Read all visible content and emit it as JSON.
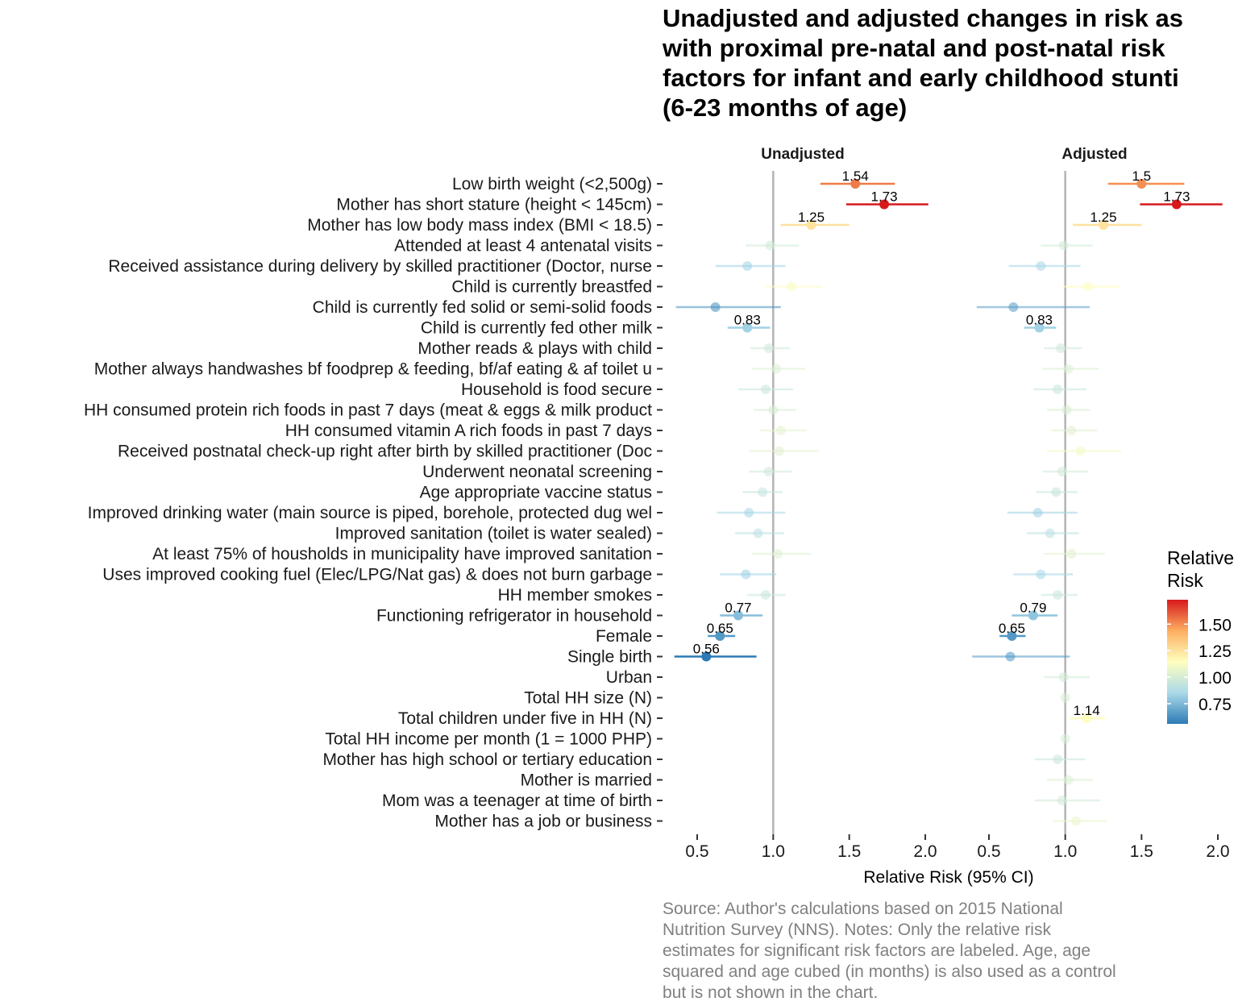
{
  "title_lines": [
    "Unadjusted and adjusted changes in risk as",
    "with proximal pre-natal and post-natal risk",
    "factors for infant and early childhood stunti",
    "(6-23 months of age)"
  ],
  "caption_lines": [
    "Source: Author's calculations based on 2015 National",
    "Nutrition Survey (NNS). Notes: Only the relative risk",
    "estimates for significant risk factors are labeled. Age, age",
    "squared and age cubed (in months) is also used as a control",
    "but is not shown in the chart."
  ],
  "legend": {
    "title_lines": [
      "Relative",
      "Risk"
    ],
    "breaks": [
      "1.50",
      "1.25",
      "1.00",
      "0.75"
    ],
    "break_values": [
      1.5,
      1.25,
      1.0,
      0.75
    ],
    "range": [
      0.56,
      1.73
    ],
    "colors": [
      "#2c7bb6",
      "#abd9e9",
      "#ffffbf",
      "#fdae61",
      "#d7191c"
    ]
  },
  "chart_data": {
    "type": "scatter",
    "subtype": "forest-plot",
    "xlabel": "Relative Risk (95% CI)",
    "ylabel": "",
    "xlim": [
      0.33,
      2.03
    ],
    "x_ticks": [
      "0.5",
      "1.0",
      "1.5",
      "2.0"
    ],
    "x_tick_values": [
      0.5,
      1.0,
      1.5,
      2.0
    ],
    "reference_line": 1.0,
    "grid": false,
    "legend_position": "right",
    "categories": [
      "Low birth weight (<2,500g)",
      "Mother has short stature (height < 145cm)",
      "Mother has low body mass index (BMI < 18.5)",
      "Attended at least 4 antenatal visits",
      "Received assistance during delivery by skilled practitioner (Doctor, nurse",
      "Child is currently breastfed",
      "Child is currently fed solid or semi-solid foods",
      "Child is currently fed other milk",
      "Mother reads & plays with child",
      "Mother always handwashes bf foodprep & feeding, bf/af eating & af toilet u",
      "Household is food secure",
      "HH consumed protein rich foods in past 7 days (meat & eggs & milk product",
      "HH consumed vitamin A rich foods in past 7 days",
      "Received postnatal check-up right after birth by skilled practitioner (Doc",
      "Underwent neonatal screening",
      "Age appropriate vaccine status",
      "Improved drinking water (main source is piped, borehole, protected dug wel",
      "Improved sanitation (toilet is water sealed)",
      "At least 75% of housholds in municipality have improved sanitation",
      "Uses improved cooking fuel (Elec/LPG/Nat gas) & does not burn garbage",
      "HH member smokes",
      "Functioning refrigerator in household",
      "Female",
      "Single birth",
      "Urban",
      "Total HH size (N)",
      "Total children under five in HH (N)",
      "Total HH income per month (1 = 1000 PHP)",
      "Mother has high school or tertiary education",
      "Mother is married",
      "Mom was a teenager at time of birth",
      "Mother has a job or business"
    ],
    "panels": [
      {
        "name": "Unadjusted",
        "estimates": [
          1.54,
          1.73,
          1.25,
          0.98,
          0.83,
          1.12,
          0.62,
          0.83,
          0.97,
          1.02,
          0.95,
          1.0,
          1.05,
          1.04,
          0.97,
          0.93,
          0.84,
          0.9,
          1.03,
          0.82,
          0.95,
          0.77,
          0.65,
          0.56,
          null,
          null,
          null,
          null,
          null,
          null,
          null,
          null
        ],
        "lower": [
          1.31,
          1.48,
          1.05,
          0.82,
          0.62,
          0.95,
          0.36,
          0.7,
          0.85,
          0.86,
          0.77,
          0.87,
          0.91,
          0.84,
          0.84,
          0.8,
          0.63,
          0.75,
          0.86,
          0.65,
          0.83,
          0.65,
          0.57,
          0.35,
          null,
          null,
          null,
          null,
          null,
          null,
          null,
          null
        ],
        "upper": [
          1.8,
          2.02,
          1.5,
          1.17,
          1.08,
          1.32,
          1.05,
          0.98,
          1.11,
          1.21,
          1.13,
          1.15,
          1.22,
          1.3,
          1.12,
          1.06,
          1.08,
          1.07,
          1.25,
          1.02,
          1.08,
          0.93,
          0.75,
          0.89,
          null,
          null,
          null,
          null,
          null,
          null,
          null,
          null
        ],
        "labels": [
          "1.54",
          "1.73",
          "1.25",
          "",
          "",
          "",
          "",
          "0.83",
          "",
          "",
          "",
          "",
          "",
          "",
          "",
          "",
          "",
          "",
          "",
          "",
          "",
          "0.77",
          "0.65",
          "0.56",
          "",
          "",
          "",
          "",
          "",
          "",
          "",
          ""
        ]
      },
      {
        "name": "Adjusted",
        "estimates": [
          1.5,
          1.73,
          1.25,
          0.99,
          0.84,
          1.15,
          0.66,
          0.83,
          0.97,
          1.02,
          0.95,
          1.01,
          1.04,
          1.1,
          0.98,
          0.94,
          0.82,
          0.9,
          1.04,
          0.84,
          0.95,
          0.79,
          0.65,
          0.64,
          0.99,
          1.0,
          1.14,
          1.0,
          0.95,
          1.02,
          0.98,
          1.07
        ],
        "lower": [
          1.28,
          1.49,
          1.05,
          0.84,
          0.63,
          0.98,
          0.42,
          0.73,
          0.86,
          0.85,
          0.79,
          0.88,
          0.91,
          0.88,
          0.85,
          0.81,
          0.62,
          0.75,
          0.86,
          0.66,
          0.84,
          0.65,
          0.57,
          0.39,
          0.86,
          0.99,
          1.03,
          0.99,
          0.8,
          0.88,
          0.8,
          0.92
        ],
        "upper": [
          1.78,
          2.03,
          1.5,
          1.18,
          1.1,
          1.36,
          1.16,
          0.94,
          1.11,
          1.22,
          1.14,
          1.16,
          1.21,
          1.37,
          1.15,
          1.08,
          1.08,
          1.09,
          1.26,
          1.05,
          1.08,
          0.95,
          0.74,
          1.03,
          1.16,
          1.01,
          1.26,
          1.01,
          1.13,
          1.18,
          1.23,
          1.27
        ],
        "labels": [
          "1.5",
          "1.73",
          "1.25",
          "",
          "",
          "",
          "",
          "0.83",
          "",
          "",
          "",
          "",
          "",
          "",
          "",
          "",
          "",
          "",
          "",
          "",
          "",
          "0.79",
          "0.65",
          "",
          "",
          "",
          "1.14",
          "",
          "",
          "",
          "",
          ""
        ]
      }
    ]
  }
}
